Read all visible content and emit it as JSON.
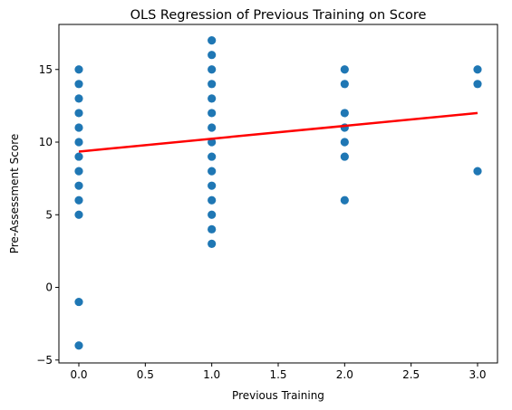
{
  "chart_data": {
    "type": "scatter",
    "title": "OLS Regression of Previous Training on Score",
    "xlabel": "Previous Training",
    "ylabel": "Pre-Assessment Score",
    "xlim": [
      -0.15,
      3.15
    ],
    "ylim": [
      -5.2,
      18.1
    ],
    "x_ticks": [
      0.0,
      0.5,
      1.0,
      1.5,
      2.0,
      2.5,
      3.0
    ],
    "x_tick_labels": [
      "0.0",
      "0.5",
      "1.0",
      "1.5",
      "2.0",
      "2.5",
      "3.0"
    ],
    "y_ticks": [
      -5,
      0,
      5,
      10,
      15
    ],
    "y_tick_labels": [
      "−5",
      "0",
      "5",
      "10",
      "15"
    ],
    "grid": false,
    "point_color": "#1f77b4",
    "line_color": "#ff0000",
    "points": [
      {
        "x": 0,
        "y": 15
      },
      {
        "x": 0,
        "y": 14
      },
      {
        "x": 0,
        "y": 13
      },
      {
        "x": 0,
        "y": 12
      },
      {
        "x": 0,
        "y": 11
      },
      {
        "x": 0,
        "y": 10
      },
      {
        "x": 0,
        "y": 9
      },
      {
        "x": 0,
        "y": 8
      },
      {
        "x": 0,
        "y": 7
      },
      {
        "x": 0,
        "y": 6
      },
      {
        "x": 0,
        "y": 5
      },
      {
        "x": 0,
        "y": -1
      },
      {
        "x": 0,
        "y": -4
      },
      {
        "x": 1,
        "y": 17
      },
      {
        "x": 1,
        "y": 16
      },
      {
        "x": 1,
        "y": 15
      },
      {
        "x": 1,
        "y": 14
      },
      {
        "x": 1,
        "y": 13
      },
      {
        "x": 1,
        "y": 12
      },
      {
        "x": 1,
        "y": 11
      },
      {
        "x": 1,
        "y": 10
      },
      {
        "x": 1,
        "y": 9
      },
      {
        "x": 1,
        "y": 8
      },
      {
        "x": 1,
        "y": 7
      },
      {
        "x": 1,
        "y": 6
      },
      {
        "x": 1,
        "y": 5
      },
      {
        "x": 1,
        "y": 4
      },
      {
        "x": 1,
        "y": 3
      },
      {
        "x": 2,
        "y": 15
      },
      {
        "x": 2,
        "y": 14
      },
      {
        "x": 2,
        "y": 12
      },
      {
        "x": 2,
        "y": 11
      },
      {
        "x": 2,
        "y": 10
      },
      {
        "x": 2,
        "y": 9
      },
      {
        "x": 2,
        "y": 6
      },
      {
        "x": 3,
        "y": 15
      },
      {
        "x": 3,
        "y": 14
      },
      {
        "x": 3,
        "y": 8
      }
    ],
    "regression_line": {
      "x": [
        0,
        3
      ],
      "y": [
        9.35,
        12.0
      ]
    }
  }
}
